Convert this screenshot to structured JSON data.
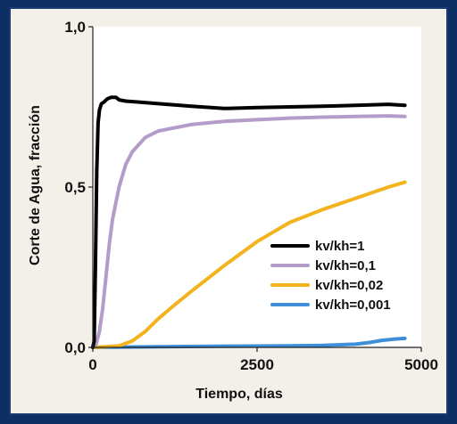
{
  "chart_data": {
    "type": "line",
    "xlabel": "Tiempo, días",
    "ylabel": "Corte de Agua, fracción",
    "xlim": [
      0,
      5000
    ],
    "ylim": [
      0,
      1
    ],
    "x_ticks": [
      "0",
      "2500",
      "5000"
    ],
    "y_ticks": [
      "0,0",
      "0,5",
      "1,0"
    ],
    "x_tick_values": [
      0,
      2500,
      5000
    ],
    "y_tick_values": [
      0,
      0.5,
      1
    ],
    "grid": false,
    "legend_position": "lower-right",
    "series": [
      {
        "name": "kv/kh=1",
        "color": "#000000",
        "x": [
          0,
          20,
          40,
          60,
          80,
          100,
          130,
          170,
          220,
          280,
          350,
          400,
          500,
          700,
          1000,
          1500,
          2000,
          2500,
          3000,
          3500,
          4000,
          4500,
          4750
        ],
        "y": [
          0,
          0.02,
          0.25,
          0.55,
          0.7,
          0.74,
          0.76,
          0.765,
          0.775,
          0.78,
          0.78,
          0.772,
          0.768,
          0.765,
          0.76,
          0.752,
          0.745,
          0.748,
          0.75,
          0.752,
          0.755,
          0.758,
          0.755
        ]
      },
      {
        "name": "kv/kh=0,1",
        "color": "#b39cc9",
        "x": [
          0,
          50,
          100,
          150,
          200,
          250,
          300,
          400,
          500,
          600,
          800,
          1000,
          1500,
          2000,
          2500,
          3000,
          3500,
          4000,
          4500,
          4750
        ],
        "y": [
          0,
          0.01,
          0.05,
          0.12,
          0.22,
          0.32,
          0.4,
          0.5,
          0.57,
          0.61,
          0.655,
          0.675,
          0.695,
          0.705,
          0.71,
          0.715,
          0.718,
          0.72,
          0.722,
          0.72
        ]
      },
      {
        "name": "kv/kh=0,02",
        "color": "#f2b31d",
        "x": [
          0,
          200,
          400,
          600,
          800,
          1000,
          1200,
          1500,
          2000,
          2500,
          3000,
          3500,
          4000,
          4500,
          4750
        ],
        "y": [
          0,
          0.002,
          0.005,
          0.02,
          0.05,
          0.09,
          0.125,
          0.175,
          0.255,
          0.33,
          0.39,
          0.43,
          0.465,
          0.5,
          0.515
        ]
      },
      {
        "name": "kv/kh=0,001",
        "color": "#3f8fd8",
        "x": [
          0,
          1000,
          2000,
          3000,
          3500,
          4000,
          4200,
          4400,
          4600,
          4750
        ],
        "y": [
          0,
          0.002,
          0.004,
          0.005,
          0.006,
          0.01,
          0.015,
          0.022,
          0.026,
          0.028
        ]
      }
    ]
  }
}
